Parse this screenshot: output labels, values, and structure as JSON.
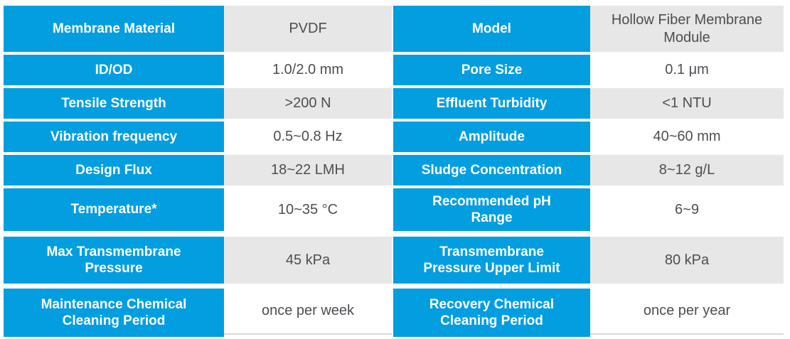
{
  "table": {
    "description": "Hollow fiber membrane module specification table",
    "colors": {
      "header_blue": "#029ee0",
      "value_row_gray": "#e7e7e7",
      "value_row_white": "#ffffff",
      "value_text": "#4d4e52",
      "label_text": "#ffffff",
      "baseline_gray": "#d9d9d9"
    },
    "rows": [
      {
        "label_left": "Membrane Material",
        "value_left": "PVDF",
        "label_right": "Model",
        "value_right": "Hollow Fiber Membrane\nModule"
      },
      {
        "label_left": "ID/OD",
        "value_left": "1.0/2.0 mm",
        "label_right": "Pore Size",
        "value_right": "0.1 μm"
      },
      {
        "label_left": "Tensile Strength",
        "value_left": ">200 N",
        "label_right": "Effluent Turbidity",
        "value_right": "<1 NTU"
      },
      {
        "label_left": "Vibration frequency",
        "value_left": "0.5~0.8 Hz",
        "label_right": "Amplitude",
        "value_right": "40~60 mm"
      },
      {
        "label_left": "Design Flux",
        "value_left": "18~22 LMH",
        "label_right": "Sludge Concentration",
        "value_right": "8~12 g/L"
      },
      {
        "label_left": "Temperature*",
        "value_left": "10~35 °C",
        "label_right": "Recommended pH\nRange",
        "value_right": "6~9"
      },
      {
        "label_left": "Max Transmembrane\nPressure",
        "value_left": "45 kPa",
        "label_right": "Transmembrane\nPressure Upper Limit",
        "value_right": "80 kPa"
      },
      {
        "label_left": "Maintenance Chemical\nCleaning Period",
        "value_left": "once per week",
        "label_right": "Recovery Chemical\nCleaning Period",
        "value_right": "once per year"
      }
    ]
  }
}
